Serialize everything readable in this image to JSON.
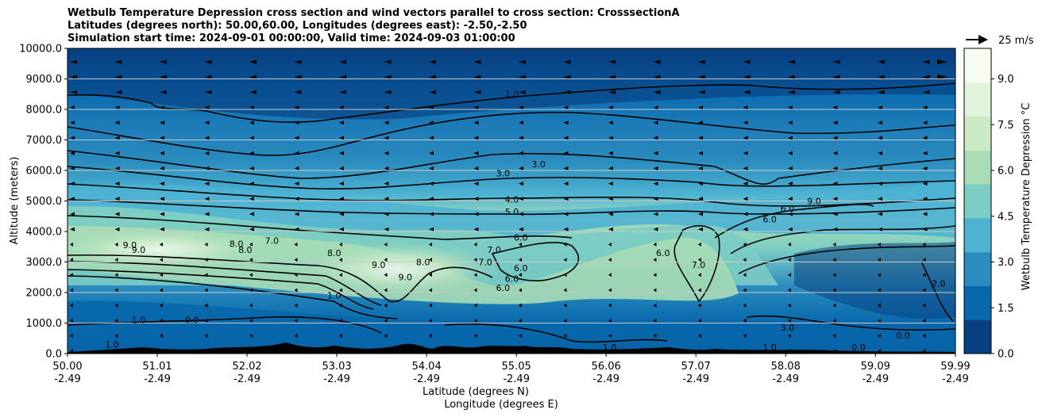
{
  "title_lines": [
    "Wetbulb Temperature Depression cross section and wind vectors parallel to cross section: CrosssectionA",
    "Latitudes (degrees north): 50.00,60.00, Longitudes (degrees east): -2.50,-2.50",
    "Simulation start time: 2024-09-01 00:00:00, Valid time: 2024-09-03 01:00:00"
  ],
  "chart_data": {
    "type": "contour-cross-section",
    "xlabel_lat": "Latitude (degrees N)",
    "xlabel_lon": "Longitude (degrees E)",
    "ylabel": "Altitude (meters)",
    "xlim": [
      50.0,
      59.99
    ],
    "ylim": [
      0,
      10000
    ],
    "x_ticks": [
      {
        "value": 50.0,
        "lat": "50.00",
        "lon": "-2.49"
      },
      {
        "value": 51.01,
        "lat": "51.01",
        "lon": "-2.49"
      },
      {
        "value": 52.02,
        "lat": "52.02",
        "lon": "-2.49"
      },
      {
        "value": 53.03,
        "lat": "53.03",
        "lon": "-2.49"
      },
      {
        "value": 54.04,
        "lat": "54.04",
        "lon": "-2.49"
      },
      {
        "value": 55.05,
        "lat": "55.05",
        "lon": "-2.49"
      },
      {
        "value": 56.06,
        "lat": "56.06",
        "lon": "-2.49"
      },
      {
        "value": 57.07,
        "lat": "57.07",
        "lon": "-2.49"
      },
      {
        "value": 58.08,
        "lat": "58.08",
        "lon": "-2.49"
      },
      {
        "value": 59.09,
        "lat": "59.09",
        "lon": "-2.49"
      },
      {
        "value": 59.99,
        "lat": "59.99",
        "lon": "-2.49"
      }
    ],
    "y_ticks": [
      0,
      1000,
      2000,
      3000,
      4000,
      5000,
      6000,
      7000,
      8000,
      9000,
      10000
    ],
    "y_tick_labels": [
      "0.0",
      "1000.0",
      "2000.0",
      "3000.0",
      "4000.0",
      "5000.0",
      "6000.0",
      "7000.0",
      "8000.0",
      "9000.0",
      "10000.0"
    ],
    "grid": "horizontal",
    "colorbar": {
      "label": "Wetbulb Temperature Depression °C",
      "range": [
        0,
        10
      ],
      "ticks": [
        0.0,
        1.5,
        3.0,
        4.5,
        6.0,
        7.5,
        9.0
      ],
      "tick_labels": [
        "0.0",
        "1.5",
        "3.0",
        "4.5",
        "6.0",
        "7.5",
        "9.0"
      ],
      "colors": [
        "#084081",
        "#0868ac",
        "#2b8cbe",
        "#4eb3d3",
        "#7bccc4",
        "#a8ddb5",
        "#ccebc5",
        "#e0f3db",
        "#f7fcf0"
      ]
    },
    "wind_key": {
      "label": "25 m/s",
      "speed": 25
    },
    "contour_labels": [
      {
        "text": "1.0",
        "x": 55.0,
        "y": 8400
      },
      {
        "text": "3.0",
        "x": 54.9,
        "y": 5800
      },
      {
        "text": "3.0",
        "x": 55.3,
        "y": 6100
      },
      {
        "text": "4.0",
        "x": 55.0,
        "y": 4950
      },
      {
        "text": "5.0",
        "x": 55.0,
        "y": 4550
      },
      {
        "text": "9.0",
        "x": 50.7,
        "y": 3450
      },
      {
        "text": "9.0",
        "x": 50.8,
        "y": 3300
      },
      {
        "text": "8.0",
        "x": 51.9,
        "y": 3500
      },
      {
        "text": "8.0",
        "x": 52.0,
        "y": 3300
      },
      {
        "text": "7.0",
        "x": 52.3,
        "y": 3600
      },
      {
        "text": "8.0",
        "x": 53.0,
        "y": 3200
      },
      {
        "text": "9.0",
        "x": 53.5,
        "y": 2800
      },
      {
        "text": "9.0",
        "x": 53.8,
        "y": 2400
      },
      {
        "text": "8.0",
        "x": 54.0,
        "y": 2900
      },
      {
        "text": "6.0",
        "x": 55.1,
        "y": 3700
      },
      {
        "text": "7.0",
        "x": 54.8,
        "y": 3300
      },
      {
        "text": "7.0",
        "x": 54.7,
        "y": 2900
      },
      {
        "text": "6.0",
        "x": 55.1,
        "y": 2700
      },
      {
        "text": "6.0",
        "x": 55.0,
        "y": 2350
      },
      {
        "text": "6.0",
        "x": 54.9,
        "y": 2050
      },
      {
        "text": "1.0",
        "x": 53.0,
        "y": 1800
      },
      {
        "text": "1.0",
        "x": 50.8,
        "y": 1000
      },
      {
        "text": "0.0",
        "x": 51.4,
        "y": 1000
      },
      {
        "text": "6.0",
        "x": 56.7,
        "y": 3200
      },
      {
        "text": "7.0",
        "x": 57.1,
        "y": 2800
      },
      {
        "text": "6.0",
        "x": 57.9,
        "y": 4300
      },
      {
        "text": "6.0",
        "x": 58.1,
        "y": 4650
      },
      {
        "text": "9.0",
        "x": 58.4,
        "y": 4900
      },
      {
        "text": "2.0",
        "x": 59.8,
        "y": 2200
      },
      {
        "text": "3.0",
        "x": 58.1,
        "y": 750
      },
      {
        "text": "1.0",
        "x": 57.9,
        "y": 100
      },
      {
        "text": "0.0",
        "x": 58.9,
        "y": 100
      },
      {
        "text": "0.0",
        "x": 59.4,
        "y": 500
      },
      {
        "text": "1.0",
        "x": 50.5,
        "y": 200
      },
      {
        "text": "1.0",
        "x": 56.1,
        "y": 100
      }
    ]
  }
}
